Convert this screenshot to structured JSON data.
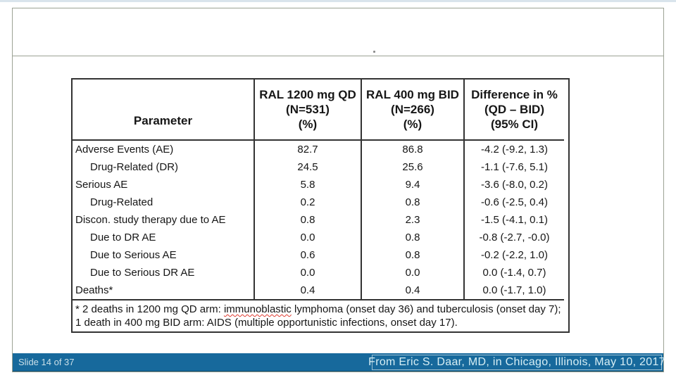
{
  "slide": {
    "title_placeholder": "",
    "counter": "Slide 14 of 37",
    "attribution": "From Eric S. Daar, MD, in Chicago, Illinois, May 10, 2017"
  },
  "table": {
    "header": {
      "param": "Parameter",
      "qd": [
        "RAL 1200 mg QD",
        "(N=531)",
        "(%)"
      ],
      "bid": [
        "RAL 400 mg BID",
        "(N=266)",
        "(%)"
      ],
      "diff": [
        "Difference in %",
        "(QD – BID)",
        "(95% CI)"
      ]
    },
    "rows": [
      {
        "param": "Adverse Events (AE)",
        "qd": "82.7",
        "bid": "86.8",
        "diff": "-4.2 (-9.2, 1.3)"
      },
      {
        "param": "Drug-Related (DR)",
        "qd": "24.5",
        "bid": "25.6",
        "diff": "-1.1 (-7.6, 5.1)"
      },
      {
        "param": "Serious AE",
        "qd": "5.8",
        "bid": "9.4",
        "diff": "-3.6 (-8.0, 0.2)"
      },
      {
        "param": "Drug-Related",
        "qd": "0.2",
        "bid": "0.8",
        "diff": "-0.6 (-2.5, 0.4)"
      },
      {
        "param": "Discon. study therapy due to AE",
        "qd": "0.8",
        "bid": "2.3",
        "diff": "-1.5 (-4.1, 0.1)"
      },
      {
        "param": "Due to DR AE",
        "qd": "0.0",
        "bid": "0.8",
        "diff": "-0.8 (-2.7, -0.0)"
      },
      {
        "param": "Due to Serious AE",
        "qd": "0.6",
        "bid": "0.8",
        "diff": "-0.2 (-2.2, 1.0)"
      },
      {
        "param": "Due to Serious DR AE",
        "qd": "0.0",
        "bid": "0.0",
        "diff": "0.0 (-1.4, 0.7)"
      },
      {
        "param": "Deaths*",
        "qd": "0.4",
        "bid": "0.4",
        "diff": "0.0 (-1.7, 1.0)"
      }
    ],
    "footnote": {
      "pre": "* 2 deaths in 1200 mg QD arm: ",
      "misspelled_word": "immunoblastic",
      "post": " lymphoma (onset day 36) and tuberculosis (onset day 7); 1 death in 400 mg BID arm: AIDS (multiple opportunistic infections, onset day 17)."
    }
  },
  "colors": {
    "footer_bar": "#17699c",
    "table_border": "#333333",
    "frame_border": "#9ba294",
    "spellcheck_underline": "#e0392e",
    "footer_text": "#d6eef4"
  }
}
